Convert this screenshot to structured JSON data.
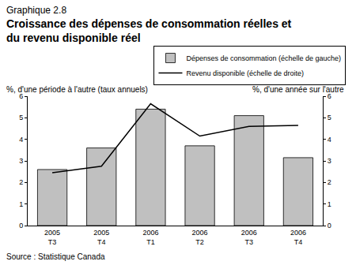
{
  "chart_data": {
    "type": "bar",
    "subtitle": "Graphique 2.8",
    "title": "Croissance des dépenses de consommation réelles et\ndu revenu disponible réel",
    "ylabel": "%, d'une période à l'autre (taux annuels)",
    "y2label": "%, d'une année sur l'autre",
    "source": "Source : Statistique Canada",
    "categories": [
      "2005 T3",
      "2005 T4",
      "2006 T1",
      "2006 T2",
      "2006 T3",
      "2006 T4"
    ],
    "series": [
      {
        "name": "Dépenses de consommation (échelle de gauche)",
        "type": "bar",
        "color": "#c0c0c0",
        "values": [
          2.6,
          3.6,
          5.4,
          3.7,
          5.1,
          3.15
        ]
      },
      {
        "name": "Revenu disponible (échelle de droite)",
        "type": "line",
        "color": "#000000",
        "axis": "y2",
        "values": [
          2.45,
          2.75,
          5.65,
          4.15,
          4.6,
          4.65
        ]
      }
    ],
    "ylim": [
      0,
      6
    ],
    "yticks": [
      0,
      1,
      2,
      3,
      4,
      5,
      6
    ],
    "y2lim": [
      0,
      6
    ],
    "y2ticks": [
      0,
      1,
      2,
      3,
      4,
      5,
      6
    ],
    "grid": false,
    "legend": "top right"
  }
}
